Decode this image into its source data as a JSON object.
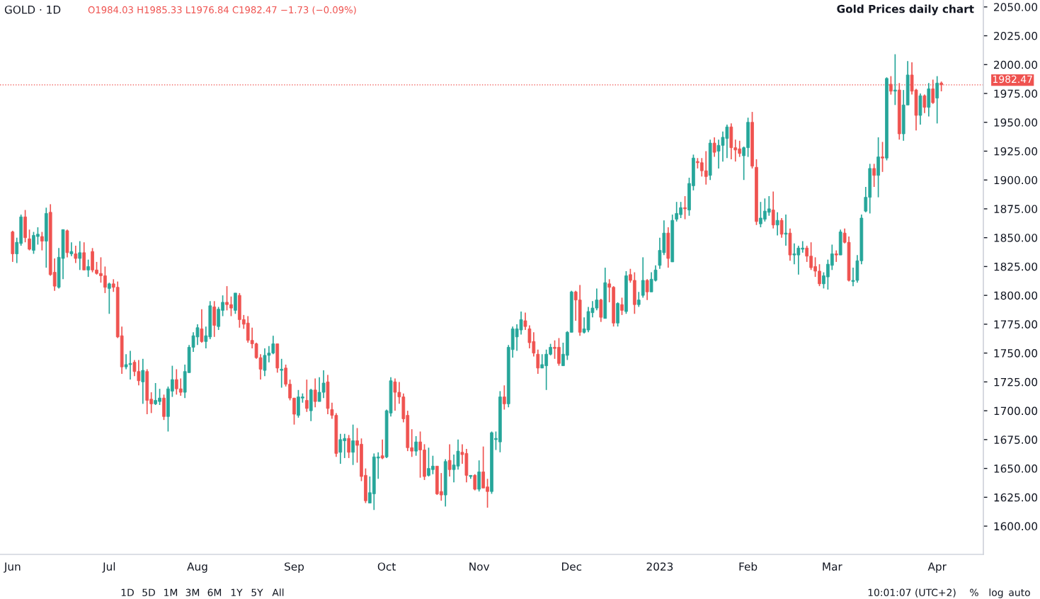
{
  "chart_data": {
    "type": "candlestick",
    "title": "Gold Prices daily chart",
    "annotations": [
      "GOLD · 1D",
      "O1984.03 H1985.33 L1976.84 C1982.47 −1.73 (−0.09%)",
      "1D",
      "5D",
      "1M",
      "3M",
      "6M",
      "1Y",
      "5Y",
      "All",
      "10:01:07 (UTC+2)",
      "%",
      "log",
      "auto"
    ],
    "categories": [
      "Jun",
      null,
      null,
      null,
      null,
      null,
      null,
      null,
      null,
      null,
      null,
      null,
      null,
      null,
      null,
      null,
      null,
      null,
      null,
      null,
      null,
      null,
      null,
      "Jul",
      null,
      null,
      null,
      null,
      null,
      null,
      null,
      null,
      null,
      null,
      null,
      null,
      null,
      null,
      null,
      null,
      null,
      null,
      null,
      null,
      "Aug",
      null,
      null,
      null,
      null,
      null,
      null,
      null,
      null,
      null,
      null,
      null,
      null,
      null,
      null,
      null,
      null,
      null,
      null,
      null,
      null,
      null,
      null,
      "Sep",
      null,
      null,
      null,
      null,
      null,
      null,
      null,
      null,
      null,
      null,
      null,
      null,
      null,
      null,
      null,
      null,
      null,
      null,
      null,
      null,
      null,
      "Oct",
      null,
      null,
      null,
      null,
      null,
      null,
      null,
      null,
      null,
      null,
      null,
      null,
      null,
      null,
      null,
      null,
      null,
      null,
      null,
      null,
      null,
      "Nov",
      null,
      null,
      null,
      null,
      null,
      null,
      null,
      null,
      null,
      null,
      null,
      null,
      null,
      null,
      null,
      null,
      null,
      null,
      null,
      null,
      null,
      "Dec",
      null,
      null,
      null,
      null,
      null,
      null,
      null,
      null,
      null,
      null,
      null,
      null,
      null,
      null,
      null,
      null,
      null,
      null,
      null,
      null,
      "2023",
      null,
      null,
      null,
      null,
      null,
      null,
      null,
      null,
      null,
      null,
      null,
      null,
      null,
      null,
      null,
      null,
      null,
      null,
      null,
      null,
      "Feb",
      null,
      null,
      null,
      null,
      null,
      null,
      null,
      null,
      null,
      null,
      null,
      null,
      null,
      null,
      null,
      null,
      null,
      null,
      null,
      "Mar",
      null,
      null,
      null,
      null,
      null,
      null,
      null,
      null,
      null,
      null,
      null,
      null,
      null,
      null,
      null,
      null,
      null,
      null,
      null,
      null,
      null,
      null,
      null,
      null,
      "Apr",
      null
    ],
    "ohlc": [
      [
        1855,
        1856,
        1829,
        1836
      ],
      [
        1836,
        1850,
        1828,
        1846
      ],
      [
        1845,
        1870,
        1843,
        1868
      ],
      [
        1868,
        1874,
        1846,
        1850
      ],
      [
        1849,
        1857,
        1839,
        1840
      ],
      [
        1839,
        1855,
        1836,
        1852
      ],
      [
        1851,
        1859,
        1844,
        1853
      ],
      [
        1851,
        1855,
        1839,
        1847
      ],
      [
        1847,
        1876,
        1824,
        1871
      ],
      [
        1872,
        1879,
        1817,
        1818
      ],
      [
        1820,
        1832,
        1804,
        1808
      ],
      [
        1807,
        1841,
        1806,
        1833
      ],
      [
        1832,
        1857,
        1814,
        1857
      ],
      [
        1856,
        1857,
        1833,
        1837
      ],
      [
        1836,
        1846,
        1834,
        1838
      ],
      [
        1836,
        1843,
        1828,
        1832
      ],
      [
        1832,
        1847,
        1822,
        1837
      ],
      [
        1837,
        1846,
        1822,
        1822
      ],
      [
        1822,
        1831,
        1816,
        1825
      ],
      [
        1838,
        1841,
        1820,
        1822
      ],
      [
        1822,
        1829,
        1818,
        1819
      ],
      [
        1819,
        1833,
        1811,
        1817
      ],
      [
        1817,
        1825,
        1802,
        1807
      ],
      [
        1806,
        1811,
        1784,
        1810
      ],
      [
        1810,
        1814,
        1803,
        1807
      ],
      [
        1807,
        1812,
        1763,
        1764
      ],
      [
        1765,
        1773,
        1732,
        1738
      ],
      [
        1738,
        1749,
        1736,
        1740
      ],
      [
        1740,
        1752,
        1727,
        1741
      ],
      [
        1742,
        1744,
        1730,
        1734
      ],
      [
        1734,
        1744,
        1722,
        1726
      ],
      [
        1725,
        1745,
        1706,
        1735
      ],
      [
        1734,
        1736,
        1697,
        1709
      ],
      [
        1710,
        1716,
        1698,
        1706
      ],
      [
        1706,
        1724,
        1705,
        1709
      ],
      [
        1708,
        1719,
        1705,
        1711
      ],
      [
        1711,
        1714,
        1692,
        1695
      ],
      [
        1695,
        1721,
        1682,
        1719
      ],
      [
        1717,
        1739,
        1712,
        1727
      ],
      [
        1727,
        1736,
        1714,
        1719
      ],
      [
        1719,
        1728,
        1713,
        1716
      ],
      [
        1716,
        1740,
        1711,
        1734
      ],
      [
        1733,
        1757,
        1733,
        1755
      ],
      [
        1755,
        1768,
        1751,
        1765
      ],
      [
        1764,
        1775,
        1757,
        1772
      ],
      [
        1771,
        1788,
        1759,
        1760
      ],
      [
        1760,
        1773,
        1754,
        1765
      ],
      [
        1764,
        1795,
        1762,
        1791
      ],
      [
        1790,
        1795,
        1764,
        1774
      ],
      [
        1773,
        1790,
        1770,
        1788
      ],
      [
        1787,
        1800,
        1782,
        1794
      ],
      [
        1794,
        1808,
        1787,
        1792
      ],
      [
        1792,
        1799,
        1782,
        1789
      ],
      [
        1787,
        1802,
        1784,
        1802
      ],
      [
        1800,
        1802,
        1772,
        1779
      ],
      [
        1779,
        1783,
        1771,
        1775
      ],
      [
        1776,
        1782,
        1759,
        1761
      ],
      [
        1761,
        1772,
        1754,
        1758
      ],
      [
        1758,
        1759,
        1745,
        1746
      ],
      [
        1746,
        1749,
        1727,
        1736
      ],
      [
        1735,
        1754,
        1730,
        1748
      ],
      [
        1748,
        1756,
        1742,
        1750
      ],
      [
        1750,
        1765,
        1749,
        1758
      ],
      [
        1758,
        1758,
        1733,
        1737
      ],
      [
        1735,
        1745,
        1720,
        1736
      ],
      [
        1737,
        1740,
        1721,
        1723
      ],
      [
        1723,
        1727,
        1709,
        1711
      ],
      [
        1711,
        1711,
        1688,
        1697
      ],
      [
        1696,
        1718,
        1694,
        1712
      ],
      [
        1711,
        1715,
        1707,
        1712
      ],
      [
        1709,
        1727,
        1699,
        1702
      ],
      [
        1700,
        1719,
        1691,
        1718
      ],
      [
        1718,
        1728,
        1703,
        1708
      ],
      [
        1708,
        1729,
        1708,
        1716
      ],
      [
        1716,
        1735,
        1711,
        1724
      ],
      [
        1725,
        1731,
        1697,
        1702
      ],
      [
        1701,
        1707,
        1693,
        1696
      ],
      [
        1696,
        1698,
        1660,
        1663
      ],
      [
        1664,
        1680,
        1654,
        1675
      ],
      [
        1674,
        1680,
        1659,
        1676
      ],
      [
        1676,
        1679,
        1659,
        1664
      ],
      [
        1664,
        1688,
        1653,
        1674
      ],
      [
        1674,
        1685,
        1655,
        1670
      ],
      [
        1671,
        1676,
        1639,
        1643
      ],
      [
        1644,
        1650,
        1620,
        1622
      ],
      [
        1620,
        1643,
        1620,
        1629
      ],
      [
        1628,
        1663,
        1614,
        1660
      ],
      [
        1659,
        1664,
        1641,
        1660
      ],
      [
        1661,
        1675,
        1658,
        1659
      ],
      [
        1660,
        1701,
        1659,
        1700
      ],
      [
        1698,
        1729,
        1695,
        1726
      ],
      [
        1725,
        1728,
        1700,
        1716
      ],
      [
        1716,
        1725,
        1706,
        1712
      ],
      [
        1712,
        1715,
        1690,
        1693
      ],
      [
        1696,
        1700,
        1665,
        1668
      ],
      [
        1668,
        1684,
        1660,
        1665
      ],
      [
        1665,
        1678,
        1661,
        1673
      ],
      [
        1673,
        1682,
        1642,
        1666
      ],
      [
        1666,
        1671,
        1640,
        1643
      ],
      [
        1644,
        1668,
        1643,
        1650
      ],
      [
        1649,
        1661,
        1645,
        1652
      ],
      [
        1652,
        1652,
        1627,
        1628
      ],
      [
        1630,
        1646,
        1622,
        1627
      ],
      [
        1627,
        1658,
        1617,
        1656
      ],
      [
        1657,
        1671,
        1643,
        1649
      ],
      [
        1649,
        1662,
        1638,
        1653
      ],
      [
        1652,
        1675,
        1649,
        1665
      ],
      [
        1664,
        1671,
        1654,
        1662
      ],
      [
        1663,
        1667,
        1638,
        1644
      ],
      [
        1643,
        1644,
        1641,
        1644
      ],
      [
        1644,
        1645,
        1631,
        1632
      ],
      [
        1632,
        1657,
        1630,
        1647
      ],
      [
        1647,
        1669,
        1633,
        1633
      ],
      [
        1634,
        1641,
        1616,
        1630
      ],
      [
        1630,
        1682,
        1628,
        1681
      ],
      [
        1675,
        1682,
        1666,
        1676
      ],
      [
        1673,
        1717,
        1664,
        1712
      ],
      [
        1712,
        1722,
        1701,
        1706
      ],
      [
        1706,
        1757,
        1703,
        1755
      ],
      [
        1753,
        1773,
        1746,
        1771
      ],
      [
        1764,
        1775,
        1752,
        1771
      ],
      [
        1770,
        1786,
        1766,
        1779
      ],
      [
        1778,
        1785,
        1770,
        1773
      ],
      [
        1771,
        1774,
        1754,
        1759
      ],
      [
        1760,
        1768,
        1747,
        1750
      ],
      [
        1749,
        1753,
        1732,
        1737
      ],
      [
        1737,
        1749,
        1737,
        1740
      ],
      [
        1739,
        1753,
        1718,
        1749
      ],
      [
        1749,
        1758,
        1748,
        1755
      ],
      [
        1755,
        1761,
        1745,
        1754
      ],
      [
        1755,
        1763,
        1739,
        1741
      ],
      [
        1739,
        1759,
        1739,
        1749
      ],
      [
        1748,
        1769,
        1744,
        1768
      ],
      [
        1768,
        1804,
        1768,
        1803
      ],
      [
        1803,
        1804,
        1778,
        1796
      ],
      [
        1796,
        1809,
        1765,
        1768
      ],
      [
        1768,
        1781,
        1767,
        1771
      ],
      [
        1770,
        1790,
        1768,
        1786
      ],
      [
        1785,
        1795,
        1781,
        1789
      ],
      [
        1789,
        1806,
        1787,
        1796
      ],
      [
        1796,
        1797,
        1777,
        1781
      ],
      [
        1780,
        1824,
        1780,
        1811
      ],
      [
        1810,
        1814,
        1794,
        1807
      ],
      [
        1807,
        1808,
        1773,
        1776
      ],
      [
        1776,
        1794,
        1773,
        1793
      ],
      [
        1792,
        1798,
        1783,
        1787
      ],
      [
        1786,
        1821,
        1784,
        1817
      ],
      [
        1818,
        1823,
        1811,
        1813
      ],
      [
        1813,
        1820,
        1784,
        1792
      ],
      [
        1792,
        1803,
        1790,
        1796
      ],
      [
        1800,
        1833,
        1798,
        1813
      ],
      [
        1813,
        1814,
        1796,
        1803
      ],
      [
        1803,
        1820,
        1803,
        1814
      ],
      [
        1813,
        1826,
        1812,
        1822
      ],
      [
        1826,
        1850,
        1823,
        1839
      ],
      [
        1837,
        1865,
        1835,
        1854
      ],
      [
        1854,
        1859,
        1824,
        1832
      ],
      [
        1829,
        1870,
        1829,
        1865
      ],
      [
        1866,
        1881,
        1864,
        1871
      ],
      [
        1870,
        1881,
        1867,
        1876
      ],
      [
        1876,
        1886,
        1866,
        1875
      ],
      [
        1874,
        1902,
        1869,
        1897
      ],
      [
        1895,
        1922,
        1891,
        1919
      ],
      [
        1916,
        1919,
        1910,
        1915
      ],
      [
        1915,
        1919,
        1903,
        1908
      ],
      [
        1908,
        1925,
        1896,
        1903
      ],
      [
        1904,
        1935,
        1900,
        1932
      ],
      [
        1932,
        1937,
        1920,
        1924
      ],
      [
        1925,
        1935,
        1910,
        1930
      ],
      [
        1930,
        1942,
        1916,
        1937
      ],
      [
        1936,
        1948,
        1919,
        1946
      ],
      [
        1946,
        1949,
        1918,
        1928
      ],
      [
        1928,
        1935,
        1916,
        1926
      ],
      [
        1927,
        1934,
        1920,
        1923
      ],
      [
        1921,
        1929,
        1900,
        1928
      ],
      [
        1928,
        1954,
        1920,
        1950
      ],
      [
        1950,
        1959,
        1910,
        1912
      ],
      [
        1911,
        1918,
        1861,
        1864
      ],
      [
        1862,
        1881,
        1859,
        1867
      ],
      [
        1866,
        1884,
        1864,
        1873
      ],
      [
        1872,
        1886,
        1869,
        1875
      ],
      [
        1874,
        1890,
        1858,
        1861
      ],
      [
        1861,
        1872,
        1852,
        1865
      ],
      [
        1865,
        1867,
        1850,
        1853
      ],
      [
        1853,
        1870,
        1843,
        1854
      ],
      [
        1854,
        1858,
        1830,
        1835
      ],
      [
        1835,
        1845,
        1827,
        1836
      ],
      [
        1835,
        1843,
        1818,
        1841
      ],
      [
        1840,
        1847,
        1837,
        1841
      ],
      [
        1841,
        1843,
        1829,
        1834
      ],
      [
        1834,
        1846,
        1822,
        1824
      ],
      [
        1825,
        1833,
        1816,
        1821
      ],
      [
        1821,
        1827,
        1808,
        1810
      ],
      [
        1810,
        1820,
        1806,
        1817
      ],
      [
        1816,
        1831,
        1805,
        1827
      ],
      [
        1826,
        1844,
        1822,
        1836
      ],
      [
        1836,
        1839,
        1829,
        1835
      ],
      [
        1835,
        1857,
        1835,
        1855
      ],
      [
        1854,
        1858,
        1845,
        1846
      ],
      [
        1846,
        1851,
        1812,
        1813
      ],
      [
        1812,
        1824,
        1808,
        1813
      ],
      [
        1813,
        1835,
        1811,
        1830
      ],
      [
        1830,
        1870,
        1827,
        1867
      ],
      [
        1873,
        1894,
        1872,
        1885
      ],
      [
        1885,
        1914,
        1871,
        1910
      ],
      [
        1910,
        1914,
        1894,
        1904
      ],
      [
        1904,
        1937,
        1885,
        1920
      ],
      [
        1920,
        1933,
        1907,
        1919
      ],
      [
        1919,
        1989,
        1917,
        1988
      ],
      [
        1983,
        1990,
        1974,
        1977
      ],
      [
        1977,
        2009,
        1965,
        1978
      ],
      [
        1978,
        1984,
        1935,
        1940
      ],
      [
        1940,
        1978,
        1934,
        1965
      ],
      [
        1965,
        2003,
        1965,
        1991
      ],
      [
        1991,
        2002,
        1974,
        1977
      ],
      [
        1978,
        1979,
        1943,
        1956
      ],
      [
        1956,
        1975,
        1948,
        1973
      ],
      [
        1973,
        1974,
        1958,
        1963
      ],
      [
        1963,
        1984,
        1955,
        1979
      ],
      [
        1979,
        1987,
        1966,
        1967
      ],
      [
        1971,
        1990,
        1949,
        1984
      ],
      [
        1984.03,
        1985.33,
        1976.84,
        1982.47
      ]
    ],
    "colors": [
      "#ef5350",
      "#26a69a",
      "#26a69a",
      "#ef5350",
      "#ef5350",
      "#26a69a",
      "#26a69a",
      "#ef5350",
      "#26a69a",
      "#ef5350",
      "#ef5350",
      "#26a69a",
      "#26a69a",
      "#ef5350",
      "#26a69a",
      "#ef5350",
      "#26a69a",
      "#ef5350",
      "#26a69a",
      "#ef5350",
      "#ef5350",
      "#ef5350",
      "#ef5350",
      "#26a69a",
      "#ef5350",
      "#ef5350",
      "#ef5350",
      "#26a69a",
      "#26a69a",
      "#ef5350",
      "#ef5350",
      "#26a69a",
      "#ef5350",
      "#ef5350",
      "#26a69a",
      "#26a69a",
      "#ef5350",
      "#26a69a",
      "#26a69a",
      "#ef5350",
      "#ef5350",
      "#26a69a",
      "#26a69a",
      "#26a69a",
      "#26a69a",
      "#ef5350",
      "#26a69a",
      "#26a69a",
      "#ef5350",
      "#26a69a",
      "#26a69a",
      "#ef5350",
      "#ef5350",
      "#26a69a",
      "#ef5350",
      "#ef5350",
      "#ef5350",
      "#ef5350",
      "#ef5350",
      "#ef5350",
      "#26a69a",
      "#26a69a",
      "#26a69a",
      "#ef5350",
      "#26a69a",
      "#ef5350",
      "#ef5350",
      "#ef5350",
      "#26a69a",
      "#26a69a",
      "#ef5350",
      "#26a69a",
      "#ef5350",
      "#26a69a",
      "#26a69a",
      "#ef5350",
      "#ef5350",
      "#ef5350",
      "#26a69a",
      "#26a69a",
      "#ef5350",
      "#26a69a",
      "#ef5350",
      "#ef5350",
      "#ef5350",
      "#26a69a",
      "#26a69a",
      "#26a69a",
      "#ef5350",
      "#26a69a",
      "#26a69a",
      "#ef5350",
      "#ef5350",
      "#ef5350",
      "#ef5350",
      "#ef5350",
      "#26a69a",
      "#ef5350",
      "#ef5350",
      "#26a69a",
      "#26a69a",
      "#ef5350",
      "#ef5350",
      "#26a69a",
      "#ef5350",
      "#26a69a",
      "#26a69a",
      "#ef5350",
      "#ef5350",
      "#26a69a",
      "#ef5350",
      "#26a69a",
      "#ef5350",
      "#ef5350",
      "#26a69a",
      "#26a69a",
      "#26a69a",
      "#ef5350",
      "#26a69a",
      "#26a69a",
      "#26a69a",
      "#26a69a",
      "#ef5350",
      "#ef5350",
      "#ef5350",
      "#ef5350",
      "#26a69a",
      "#26a69a",
      "#26a69a",
      "#ef5350",
      "#ef5350",
      "#26a69a",
      "#26a69a",
      "#26a69a",
      "#ef5350",
      "#ef5350",
      "#26a69a",
      "#26a69a",
      "#26a69a",
      "#26a69a",
      "#ef5350",
      "#26a69a",
      "#ef5350",
      "#ef5350",
      "#26a69a",
      "#ef5350",
      "#26a69a",
      "#ef5350",
      "#ef5350",
      "#26a69a",
      "#26a69a",
      "#ef5350",
      "#26a69a",
      "#26a69a",
      "#26a69a",
      "#26a69a",
      "#ef5350",
      "#26a69a",
      "#26a69a",
      "#26a69a",
      "#ef5350",
      "#26a69a",
      "#26a69a",
      "#ef5350",
      "#ef5350",
      "#ef5350",
      "#26a69a",
      "#ef5350",
      "#26a69a",
      "#26a69a",
      "#26a69a",
      "#ef5350",
      "#ef5350",
      "#ef5350",
      "#26a69a",
      "#26a69a",
      "#ef5350",
      "#ef5350",
      "#26a69a",
      "#26a69a",
      "#26a69a",
      "#ef5350",
      "#26a69a",
      "#ef5350",
      "#26a69a",
      "#ef5350",
      "#26a69a",
      "#26a69a",
      "#26a69a",
      "#ef5350",
      "#ef5350",
      "#ef5350",
      "#ef5350",
      "#26a69a",
      "#26a69a",
      "#26a69a",
      "#ef5350",
      "#26a69a",
      "#ef5350",
      "#ef5350",
      "#26a69a",
      "#26a69a",
      "#26a69a",
      "#26a69a",
      "#26a69a",
      "#ef5350",
      "#26a69a",
      "#ef5350",
      "#26a69a",
      "#ef5350",
      "#26a69a",
      "#ef5350",
      "#26a69a",
      "#26a69a",
      "#ef5350",
      "#ef5350",
      "#26a69a",
      "#ef5350",
      "#26a69a",
      "#ef5350",
      "#26a69a",
      "#ef5350"
    ],
    "ylim": [
      1575.5,
      2056
    ],
    "yticks": [
      {
        "value": 1600,
        "label": "1600.00"
      },
      {
        "value": 1625,
        "label": "1625.00"
      },
      {
        "value": 1650,
        "label": "1650.00"
      },
      {
        "value": 1675,
        "label": "1675.00"
      },
      {
        "value": 1700,
        "label": "1700.00"
      },
      {
        "value": 1725,
        "label": "1725.00"
      },
      {
        "value": 1750,
        "label": "1750.00"
      },
      {
        "value": 1775,
        "label": "1775.00"
      },
      {
        "value": 1800,
        "label": "1800.00"
      },
      {
        "value": 1825,
        "label": "1825.00"
      },
      {
        "value": 1850,
        "label": "1850.00"
      },
      {
        "value": 1875,
        "label": "1875.00"
      },
      {
        "value": 1900,
        "label": "1900.00"
      },
      {
        "value": 1925,
        "label": "1925.00"
      },
      {
        "value": 1950,
        "label": "1950.00"
      },
      {
        "value": 1975,
        "label": "1975.00"
      },
      {
        "value": 2000,
        "label": "2000.00"
      },
      {
        "value": 2025,
        "label": "2025.00"
      },
      {
        "value": 2050,
        "label": "2050.00"
      }
    ],
    "ref_lines": [
      {
        "axis": "y",
        "value": 1982.47,
        "label": "1982.47",
        "color": "#ef5350",
        "line_style": "dotted"
      }
    ],
    "grid": false,
    "legend": false
  }
}
